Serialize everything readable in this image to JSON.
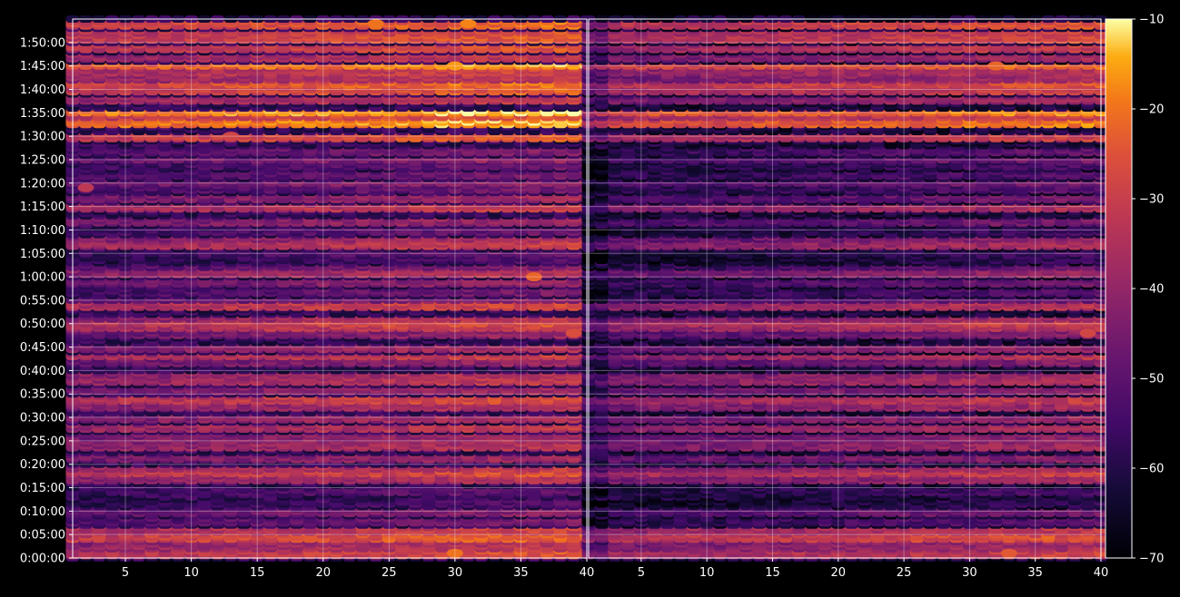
{
  "chart_data": {
    "type": "heatmap",
    "title": "",
    "xlabel": "",
    "ylabel": "",
    "panels": [
      {
        "name": "",
        "xlim": [
          1,
          40
        ]
      },
      {
        "name": "",
        "xlim": [
          1,
          40
        ]
      }
    ],
    "x_ticks": [
      5,
      10,
      15,
      20,
      25,
      30,
      35,
      40
    ],
    "x_tick_labels": [
      "5",
      "10",
      "15",
      "20",
      "25",
      "30",
      "35",
      "40"
    ],
    "ylim_seconds": [
      0,
      6900
    ],
    "y_ticks_seconds": [
      0,
      300,
      600,
      900,
      1200,
      1500,
      1800,
      2100,
      2400,
      2700,
      3000,
      3300,
      3600,
      3900,
      4200,
      4500,
      4800,
      5100,
      5400,
      5700,
      6000,
      6300,
      6600
    ],
    "y_tick_labels": [
      "0:00:00",
      "0:05:00",
      "0:10:00",
      "0:15:00",
      "0:20:00",
      "0:25:00",
      "0:30:00",
      "0:35:00",
      "0:40:00",
      "0:45:00",
      "0:50:00",
      "0:55:00",
      "1:00:00",
      "1:05:00",
      "1:10:00",
      "1:15:00",
      "1:20:00",
      "1:25:00",
      "1:30:00",
      "1:35:00",
      "1:40:00",
      "1:45:00",
      "1:50:00"
    ],
    "grid": true,
    "colormap": "inferno",
    "colorbar": {
      "range": [
        -70,
        -10
      ],
      "ticks": [
        -70,
        -60,
        -50,
        -40,
        -30,
        -20,
        -10
      ],
      "tick_labels": [
        "−70",
        "−60",
        "−50",
        "−40",
        "−30",
        "−20",
        "−10"
      ]
    },
    "band_profile": {
      "note": "approximate level (dB) per time row, averaged across x",
      "y_seconds": [
        60,
        120,
        180,
        270,
        360,
        480,
        600,
        720,
        870,
        1020,
        1080,
        1140,
        1290,
        1440,
        1500,
        1560,
        1680,
        1800,
        1950,
        2040,
        2160,
        2280,
        2340,
        2520,
        2580,
        2700,
        2880,
        2940,
        3000,
        3060,
        3240,
        3300,
        3420,
        3540,
        3660,
        3720,
        3840,
        3900,
        4020,
        4080,
        4200,
        4320,
        4500,
        4620,
        4740,
        4800,
        4920,
        5040,
        5100,
        5220,
        5400,
        5580,
        5640,
        5700,
        5880,
        6000,
        6060,
        6150,
        6240,
        6300,
        6420,
        6540,
        6660,
        6720,
        6840
      ],
      "left_db": [
        -30,
        -36,
        -38,
        -27,
        -33,
        -49,
        -46,
        -56,
        -53,
        -38,
        -30,
        -36,
        -42,
        -38,
        -40,
        -42,
        -36,
        -40,
        -38,
        -31,
        -42,
        -36,
        -38,
        -44,
        -33,
        -40,
        -44,
        -33,
        -30,
        -38,
        -32,
        -46,
        -50,
        -44,
        -38,
        -48,
        -56,
        -52,
        -34,
        -40,
        -52,
        -42,
        -34,
        -42,
        -50,
        -44,
        -50,
        -52,
        -44,
        -48,
        -28,
        -18,
        -28,
        -16,
        -36,
        -28,
        -24,
        -36,
        -32,
        -20,
        -36,
        -30,
        -28,
        -30,
        -26
      ],
      "right_db": [
        -34,
        -40,
        -42,
        -30,
        -36,
        -55,
        -50,
        -62,
        -58,
        -42,
        -34,
        -40,
        -46,
        -42,
        -44,
        -46,
        -40,
        -44,
        -42,
        -36,
        -46,
        -40,
        -42,
        -48,
        -38,
        -44,
        -48,
        -38,
        -34,
        -42,
        -38,
        -52,
        -56,
        -52,
        -44,
        -54,
        -62,
        -60,
        -40,
        -46,
        -60,
        -50,
        -40,
        -50,
        -56,
        -50,
        -56,
        -58,
        -50,
        -54,
        -34,
        -24,
        -34,
        -22,
        -42,
        -34,
        -30,
        -42,
        -38,
        -26,
        -42,
        -36,
        -32,
        -34,
        -30
      ]
    },
    "hotspots": [
      {
        "panel": 0,
        "x": 30,
        "y_seconds": 6300,
        "db": -16
      },
      {
        "panel": 0,
        "x": 31,
        "y_seconds": 6840,
        "db": -18
      },
      {
        "panel": 0,
        "x": 24,
        "y_seconds": 6840,
        "db": -20
      },
      {
        "panel": 0,
        "x": 13,
        "y_seconds": 5400,
        "db": -28
      },
      {
        "panel": 0,
        "x": 2,
        "y_seconds": 4740,
        "db": -32
      },
      {
        "panel": 0,
        "x": 36,
        "y_seconds": 3600,
        "db": -22
      },
      {
        "panel": 0,
        "x": 39,
        "y_seconds": 2880,
        "db": -26
      },
      {
        "panel": 0,
        "x": 30,
        "y_seconds": 60,
        "db": -20
      },
      {
        "panel": 1,
        "x": 32,
        "y_seconds": 6300,
        "db": -22
      },
      {
        "panel": 1,
        "x": 39,
        "y_seconds": 2880,
        "db": -28
      },
      {
        "panel": 1,
        "x": 33,
        "y_seconds": 60,
        "db": -24
      }
    ]
  }
}
